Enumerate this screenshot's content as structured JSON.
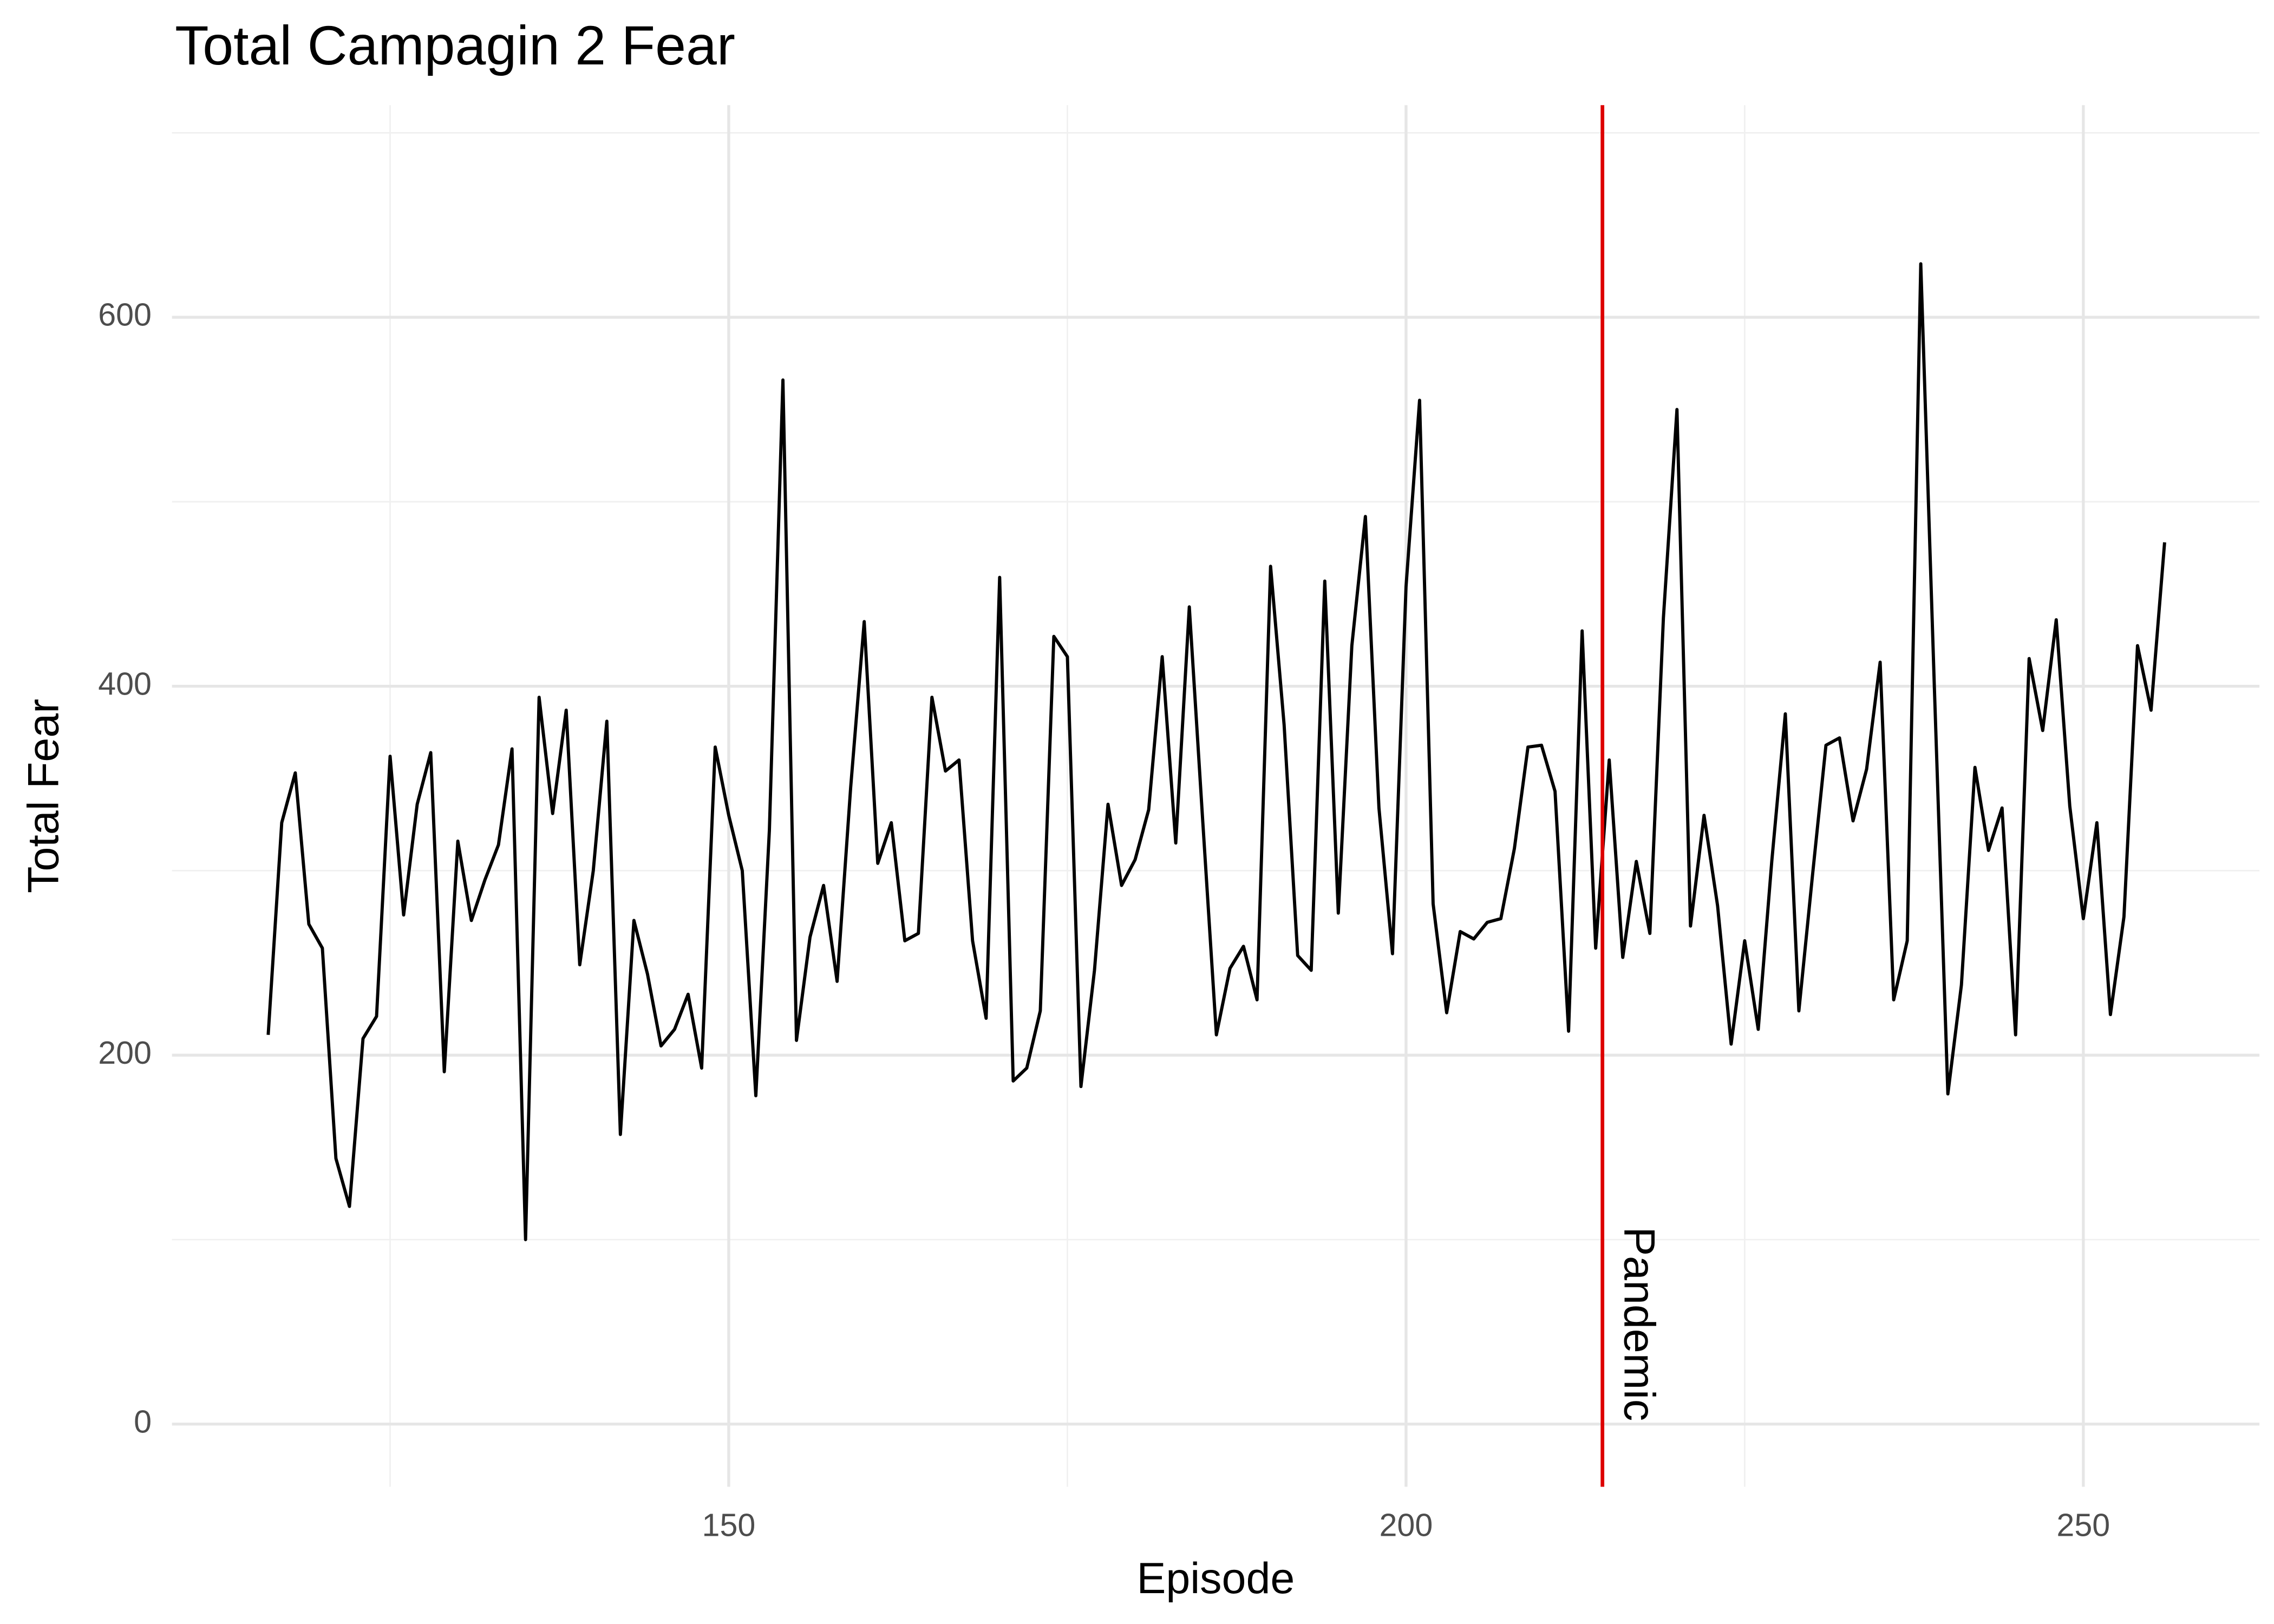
{
  "chart_data": {
    "type": "line",
    "title": "Total Campagin 2 Fear",
    "x_label": "Episode",
    "y_label": "Total Fear",
    "color": "#000000",
    "x": [
      116,
      117,
      118,
      119,
      120,
      121,
      122,
      123,
      124,
      125,
      126,
      127,
      128,
      129,
      130,
      131,
      132,
      133,
      134,
      135,
      136,
      137,
      138,
      139,
      140,
      141,
      142,
      143,
      144,
      145,
      146,
      147,
      148,
      149,
      150,
      151,
      152,
      153,
      154,
      155,
      156,
      157,
      158,
      159,
      160,
      161,
      162,
      163,
      164,
      165,
      166,
      167,
      168,
      169,
      170,
      171,
      172,
      173,
      174,
      175,
      176,
      177,
      178,
      179,
      180,
      181,
      182,
      183,
      184,
      185,
      186,
      187,
      188,
      189,
      190,
      191,
      192,
      193,
      194,
      195,
      196,
      197,
      198,
      199,
      200,
      201,
      202,
      203,
      204,
      205,
      206,
      207,
      208,
      209,
      210,
      211,
      212,
      213,
      214,
      215,
      216,
      217,
      218,
      219,
      220,
      221,
      222,
      223,
      224,
      225,
      226,
      227,
      228,
      229,
      230,
      231,
      232,
      233,
      234,
      235,
      236,
      237,
      238,
      239,
      240,
      241,
      242,
      243,
      244,
      245,
      246,
      247,
      248,
      249,
      250,
      251,
      252,
      253,
      254,
      255,
      256
    ],
    "values": [
      211,
      326,
      353,
      271,
      258,
      144,
      118,
      209,
      221,
      362,
      276,
      336,
      364,
      191,
      316,
      273,
      295,
      314,
      366,
      100,
      394,
      331,
      387,
      249,
      300,
      381,
      157,
      273,
      244,
      205,
      214,
      233,
      193,
      367,
      330,
      300,
      178,
      322,
      566,
      208,
      264,
      292,
      240,
      345,
      435,
      304,
      326,
      262,
      266,
      394,
      354,
      360,
      262,
      220,
      459,
      186,
      193,
      224,
      427,
      416,
      183,
      246,
      336,
      292,
      306,
      333,
      416,
      315,
      443,
      326,
      211,
      247,
      259,
      230,
      465,
      379,
      254,
      246,
      457,
      277,
      422,
      492,
      334,
      255,
      454,
      555,
      282,
      223,
      267,
      263,
      272,
      274,
      312,
      367,
      368,
      343,
      213,
      430,
      258,
      360,
      253,
      305,
      266,
      437,
      550,
      270,
      330,
      281,
      206,
      262,
      214,
      305,
      385,
      224,
      297,
      368,
      372,
      327,
      355,
      413,
      230,
      262,
      629,
      400,
      179,
      238,
      356,
      311,
      334,
      211,
      415,
      376,
      436,
      335,
      274,
      326,
      222,
      275,
      422,
      387,
      478
    ],
    "xlim": [
      108.9,
      263
    ],
    "ylim": [
      -34,
      715
    ],
    "xticks": [
      150,
      200,
      250
    ],
    "x_minor_ticks": [
      125,
      175,
      225
    ],
    "yticks": [
      0,
      200,
      400,
      600
    ],
    "y_minor_ticks": [
      100,
      300,
      500,
      700
    ],
    "grid": true,
    "annotation": {
      "x": 214.5,
      "label": "Pandemic",
      "color": "#dd0000"
    }
  }
}
